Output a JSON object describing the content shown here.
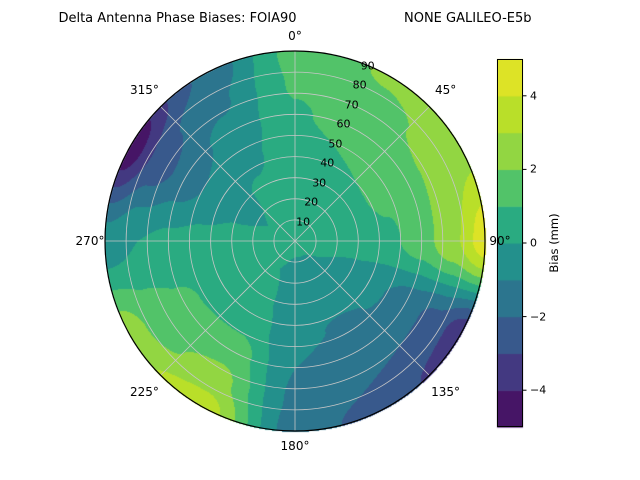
{
  "chart_data": {
    "type": "heatmap",
    "projection": "polar",
    "title": "Delta Antenna Phase Biases: FOIA90                          NONE GALILEO-E5b",
    "station": "FOIA90",
    "comparison": "NONE",
    "signal": "GALILEO-E5b",
    "azimuth_labels": [
      "0°",
      "45°",
      "90°",
      "135°",
      "180°",
      "225°",
      "270°",
      "315°"
    ],
    "azimuth_label_angles_deg": [
      0,
      45,
      90,
      135,
      180,
      225,
      270,
      315
    ],
    "radial_ticks": [
      10,
      20,
      30,
      40,
      50,
      60,
      70,
      80,
      90
    ],
    "radial_max": 90,
    "radial_label_angle_deg": 22.5,
    "grid": {
      "azimuth_step_deg": 45,
      "radial_step": 10,
      "on": true
    },
    "colorbar": {
      "label": "Bias (mm)",
      "ticks": [
        -4,
        -2,
        0,
        2,
        4
      ],
      "tick_labels": [
        "−4",
        "−2",
        "0",
        "2",
        "4"
      ],
      "range": [
        -5,
        5
      ],
      "levels_step": 1,
      "colormap": "viridis",
      "position": "right"
    },
    "colormap_stops": [
      "#440154",
      "#482878",
      "#3e4989",
      "#31688e",
      "#26828e",
      "#1f9e89",
      "#35b779",
      "#6ece58",
      "#b5de2b",
      "#bddf26",
      "#fde725"
    ],
    "field": {
      "units": "mm",
      "azimuth_deg": [
        0,
        30,
        60,
        90,
        120,
        150,
        180,
        210,
        240,
        270,
        300,
        330,
        360
      ],
      "zenith_deg": [
        0,
        15,
        30,
        45,
        60,
        75,
        90
      ],
      "bias_mm": [
        [
          0.2,
          0.2,
          0.2,
          0.2,
          0.2,
          0.2,
          0.2,
          0.2,
          0.2,
          0.2,
          0.2,
          0.2,
          0.2
        ],
        [
          0.3,
          0.4,
          0.4,
          0.3,
          0.0,
          -0.2,
          -0.2,
          0.0,
          0.2,
          0.2,
          0.0,
          0.1,
          0.3
        ],
        [
          0.4,
          0.6,
          0.7,
          0.4,
          -0.3,
          -0.6,
          -0.5,
          0.2,
          0.4,
          0.3,
          -0.2,
          0.1,
          0.4
        ],
        [
          0.6,
          1.0,
          1.2,
          0.8,
          -0.9,
          -1.1,
          -0.8,
          0.7,
          0.8,
          0.3,
          -0.8,
          -0.2,
          0.6
        ],
        [
          0.9,
          1.5,
          1.8,
          1.6,
          -1.6,
          -1.6,
          -1.0,
          1.6,
          1.2,
          0.2,
          -1.6,
          -0.7,
          0.9
        ],
        [
          1.1,
          1.8,
          2.2,
          2.8,
          -2.3,
          -2.0,
          -1.2,
          2.4,
          1.6,
          0.0,
          -2.6,
          -1.2,
          1.1
        ],
        [
          1.3,
          2.1,
          2.6,
          4.6,
          -3.8,
          -2.6,
          -1.5,
          3.6,
          2.6,
          -0.6,
          -4.7,
          -1.9,
          1.3
        ]
      ]
    },
    "colors": {
      "background": "#ffffff",
      "grid_line": "#c6c6c6",
      "outline": "#000000",
      "text": "#000000"
    }
  }
}
